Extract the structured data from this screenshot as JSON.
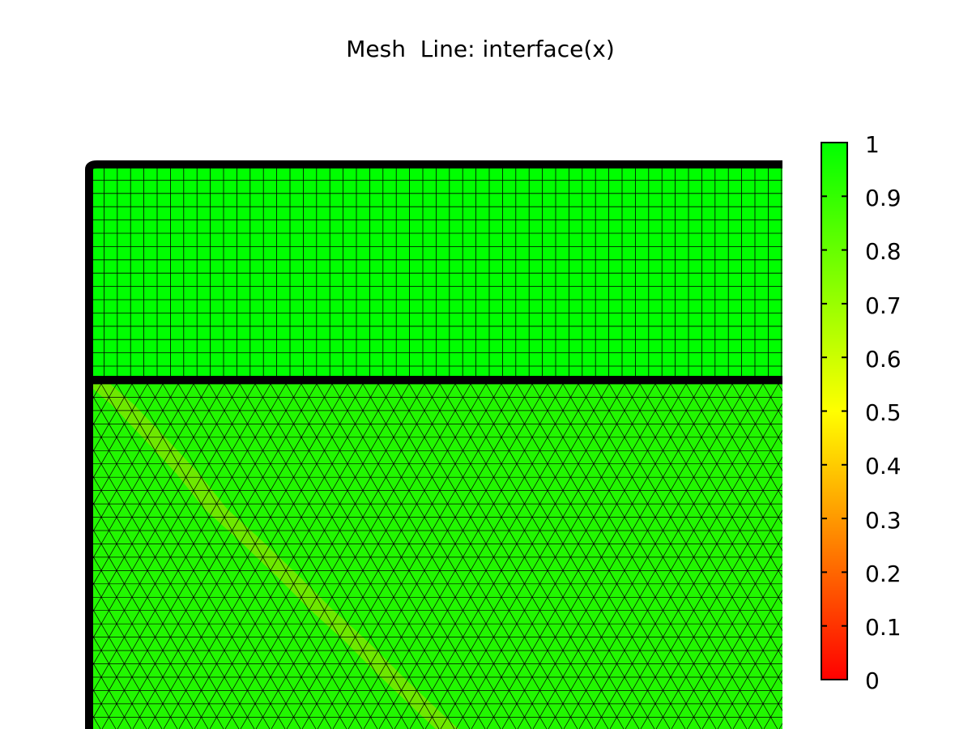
{
  "plot": {
    "title": "Mesh  Line: interface(x)"
  },
  "colorbar": {
    "colormap": [
      "#ff0000",
      "#ffff00",
      "#00ff00"
    ],
    "min": 0,
    "max": 1,
    "tick_labels": [
      "1",
      "0.9",
      "0.8",
      "0.7",
      "0.6",
      "0.5",
      "0.4",
      "0.3",
      "0.2",
      "0.1",
      "0"
    ]
  },
  "colors": {
    "upper_domain_fill": "#00ff00",
    "lower_domain_fill": "#22f700",
    "interface_band": "#6ee800",
    "mesh_line": "#000000",
    "boundary_line": "#000000"
  }
}
